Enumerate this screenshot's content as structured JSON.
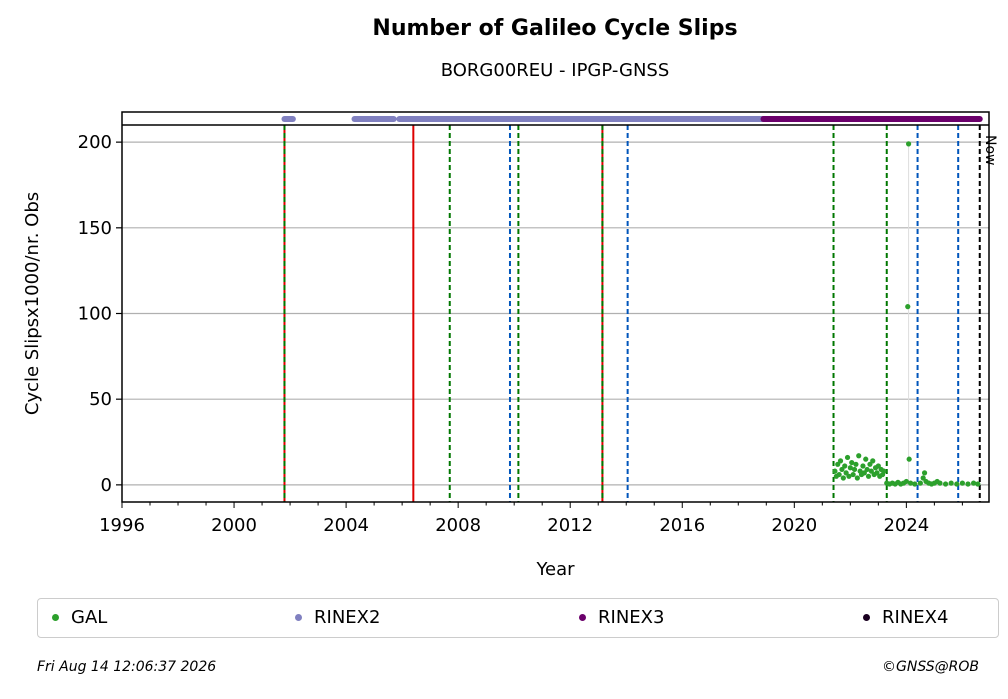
{
  "header": {
    "title": "Number of Galileo Cycle Slips",
    "subtitle": "BORG00REU - IPGP-GNSS"
  },
  "footer": {
    "timestamp": "Fri Aug 14 12:06:37 2026",
    "copyright": "©GNSS@ROB"
  },
  "legend": [
    {
      "label": "GAL",
      "color": "#2ca02c"
    },
    {
      "label": "RINEX2",
      "color": "#8080c0"
    },
    {
      "label": "RINEX3",
      "color": "#6b006b"
    },
    {
      "label": "RINEX4",
      "color": "#1a0020"
    }
  ],
  "chart_data": {
    "type": "scatter",
    "title": "Number of Galileo Cycle Slips",
    "subtitle": "BORG00REU - IPGP-GNSS",
    "xlabel": "Year",
    "ylabel": "Cycle Slipsx1000/nr. Obs",
    "xlim": [
      1996,
      2026.95
    ],
    "ylim": [
      -10,
      210
    ],
    "x_ticks": [
      1996,
      2000,
      2004,
      2008,
      2012,
      2016,
      2020,
      2024
    ],
    "y_ticks": [
      0,
      50,
      100,
      150,
      200
    ],
    "grid": "horizontal",
    "now_label": "Now",
    "now_year": 2026.62,
    "colors": {
      "gal": "#2ca02c",
      "rinex2": "#8080c0",
      "rinex3": "#6b006b",
      "red_event": "#dd0000",
      "green_event": "#007700",
      "blue_event": "#0055bb",
      "now_line": "#000000"
    },
    "event_lines": [
      {
        "x": 2001.8,
        "kind": "red-green"
      },
      {
        "x": 2006.4,
        "kind": "red"
      },
      {
        "x": 2007.7,
        "kind": "green"
      },
      {
        "x": 2009.85,
        "kind": "blue"
      },
      {
        "x": 2010.15,
        "kind": "green"
      },
      {
        "x": 2013.15,
        "kind": "red-green"
      },
      {
        "x": 2014.05,
        "kind": "blue"
      },
      {
        "x": 2021.4,
        "kind": "green"
      },
      {
        "x": 2023.3,
        "kind": "green"
      },
      {
        "x": 2024.4,
        "kind": "blue"
      },
      {
        "x": 2025.85,
        "kind": "blue"
      }
    ],
    "rinex_segments": [
      {
        "format": "RINEX2",
        "start": 2001.8,
        "end": 2002.1
      },
      {
        "format": "RINEX2",
        "start": 2004.3,
        "end": 2005.7
      },
      {
        "format": "RINEX2",
        "start": 2005.9,
        "end": 2018.9
      },
      {
        "format": "RINEX3",
        "start": 2018.9,
        "end": 2026.62
      }
    ],
    "series": [
      {
        "name": "GAL",
        "points": [
          [
            2021.45,
            8
          ],
          [
            2021.5,
            5
          ],
          [
            2021.55,
            12
          ],
          [
            2021.6,
            6
          ],
          [
            2021.65,
            14
          ],
          [
            2021.7,
            9
          ],
          [
            2021.75,
            4
          ],
          [
            2021.8,
            11
          ],
          [
            2021.85,
            7
          ],
          [
            2021.9,
            16
          ],
          [
            2021.95,
            5
          ],
          [
            2022.0,
            10
          ],
          [
            2022.05,
            13
          ],
          [
            2022.1,
            6
          ],
          [
            2022.15,
            9
          ],
          [
            2022.2,
            12
          ],
          [
            2022.25,
            4
          ],
          [
            2022.3,
            17
          ],
          [
            2022.35,
            8
          ],
          [
            2022.4,
            6
          ],
          [
            2022.45,
            11
          ],
          [
            2022.5,
            7
          ],
          [
            2022.55,
            15
          ],
          [
            2022.6,
            9
          ],
          [
            2022.65,
            5
          ],
          [
            2022.7,
            12
          ],
          [
            2022.75,
            8
          ],
          [
            2022.8,
            14
          ],
          [
            2022.85,
            6
          ],
          [
            2022.9,
            10
          ],
          [
            2022.95,
            7
          ],
          [
            2023.0,
            11
          ],
          [
            2023.05,
            5
          ],
          [
            2023.1,
            9
          ],
          [
            2023.15,
            6
          ],
          [
            2023.2,
            8
          ],
          [
            2023.3,
            1
          ],
          [
            2023.4,
            0.5
          ],
          [
            2023.5,
            1
          ],
          [
            2023.6,
            0.5
          ],
          [
            2023.7,
            1.5
          ],
          [
            2023.8,
            0.5
          ],
          [
            2023.9,
            1
          ],
          [
            2024.0,
            2
          ],
          [
            2024.05,
            104
          ],
          [
            2024.08,
            199
          ],
          [
            2024.1,
            15
          ],
          [
            2024.15,
            1
          ],
          [
            2024.3,
            0.5
          ],
          [
            2024.5,
            1
          ],
          [
            2024.6,
            4
          ],
          [
            2024.65,
            7
          ],
          [
            2024.7,
            2
          ],
          [
            2024.8,
            1
          ],
          [
            2024.9,
            0.5
          ],
          [
            2025.0,
            1
          ],
          [
            2025.1,
            2
          ],
          [
            2025.2,
            1
          ],
          [
            2025.4,
            0.5
          ],
          [
            2025.6,
            1
          ],
          [
            2025.8,
            0.5
          ],
          [
            2026.0,
            1
          ],
          [
            2026.2,
            0.5
          ],
          [
            2026.4,
            1
          ],
          [
            2026.55,
            0.5
          ]
        ]
      }
    ]
  }
}
